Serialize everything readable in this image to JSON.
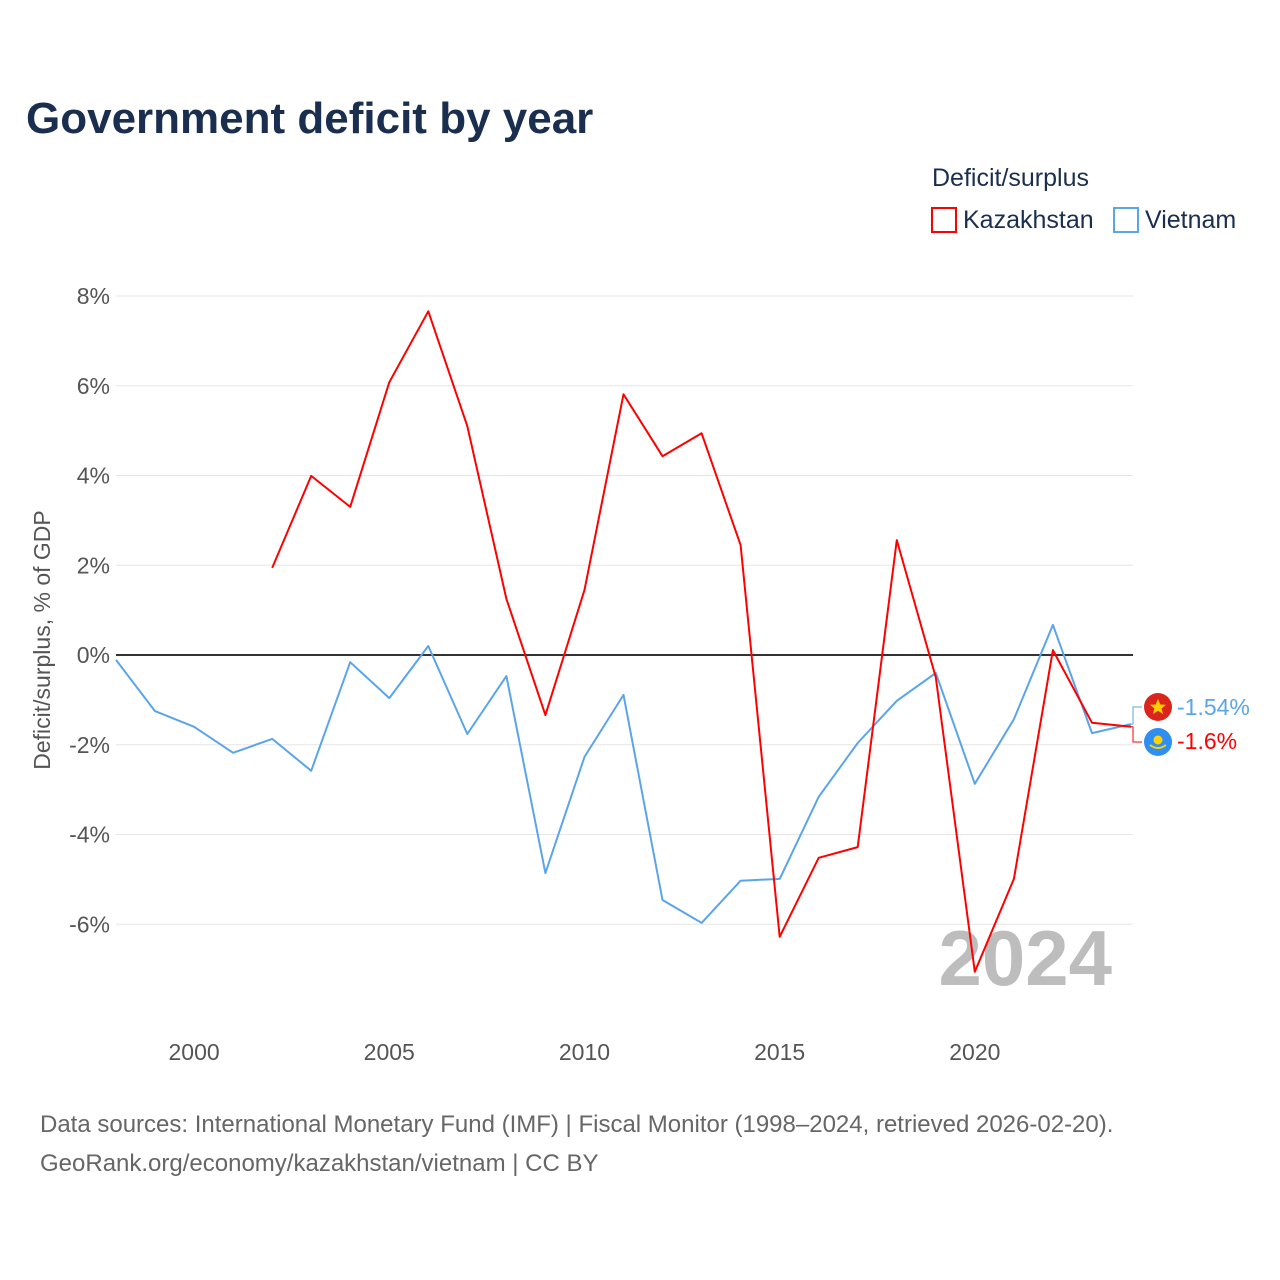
{
  "title": "Government deficit by year",
  "legend": {
    "title": "Deficit/surplus",
    "items": [
      {
        "label": "Kazakhstan",
        "color": "#ff0000"
      },
      {
        "label": "Vietnam",
        "color": "#5aa5ea"
      }
    ]
  },
  "year_watermark": "2024",
  "source_line1": "Data sources: International Monetary Fund (IMF) | Fiscal Monitor (1998–2024, retrieved 2026-02-20).",
  "source_line2": "GeoRank.org/economy/kazakhstan/vietnam | CC BY",
  "chart_data": {
    "type": "line",
    "title": "Government deficit by year",
    "xlabel": "",
    "ylabel": "Deficit/surplus, % of GDP",
    "xlim": [
      1998,
      2024
    ],
    "ylim": [
      -8,
      8
    ],
    "x_ticks": [
      2000,
      2005,
      2010,
      2015,
      2020
    ],
    "x_tick_labels": [
      "2000",
      "2005",
      "2010",
      "2015",
      "2020"
    ],
    "y_ticks": [
      8,
      6,
      4,
      2,
      0,
      -2,
      -4,
      -6
    ],
    "y_tick_labels": [
      "8%",
      "6%",
      "4%",
      "2%",
      "0%",
      "-2%",
      "-4%",
      "-6%"
    ],
    "grid": true,
    "legend_position": "top-right",
    "series": [
      {
        "name": "Kazakhstan",
        "color": "#ff0000",
        "end_label": "-1.6%",
        "x": [
          2002,
          2003,
          2004,
          2005,
          2006,
          2007,
          2008,
          2009,
          2010,
          2011,
          2012,
          2013,
          2014,
          2015,
          2016,
          2017,
          2018,
          2019,
          2020,
          2021,
          2022,
          2023,
          2024
        ],
        "values": [
          1.94,
          3.99,
          3.3,
          6.08,
          7.66,
          5.1,
          1.25,
          -1.34,
          1.45,
          5.81,
          4.43,
          4.94,
          2.45,
          -6.28,
          -4.52,
          -4.28,
          2.56,
          -0.5,
          -7.06,
          -4.99,
          0.11,
          -1.51,
          -1.6
        ]
      },
      {
        "name": "Vietnam",
        "color": "#5aa5ea",
        "end_label": "-1.54%",
        "x": [
          1998,
          1999,
          2000,
          2001,
          2002,
          2003,
          2004,
          2005,
          2006,
          2007,
          2008,
          2009,
          2010,
          2011,
          2012,
          2013,
          2014,
          2015,
          2016,
          2017,
          2018,
          2019,
          2020,
          2021,
          2022,
          2023,
          2024
        ],
        "values": [
          -0.11,
          -1.25,
          -1.6,
          -2.18,
          -1.87,
          -2.58,
          -0.16,
          -0.96,
          0.2,
          -1.76,
          -0.47,
          -4.86,
          -2.27,
          -0.89,
          -5.46,
          -5.97,
          -5.03,
          -4.99,
          -3.16,
          -1.96,
          -1.02,
          -0.4,
          -2.87,
          -1.43,
          0.67,
          -1.74,
          -1.54
        ]
      }
    ]
  }
}
